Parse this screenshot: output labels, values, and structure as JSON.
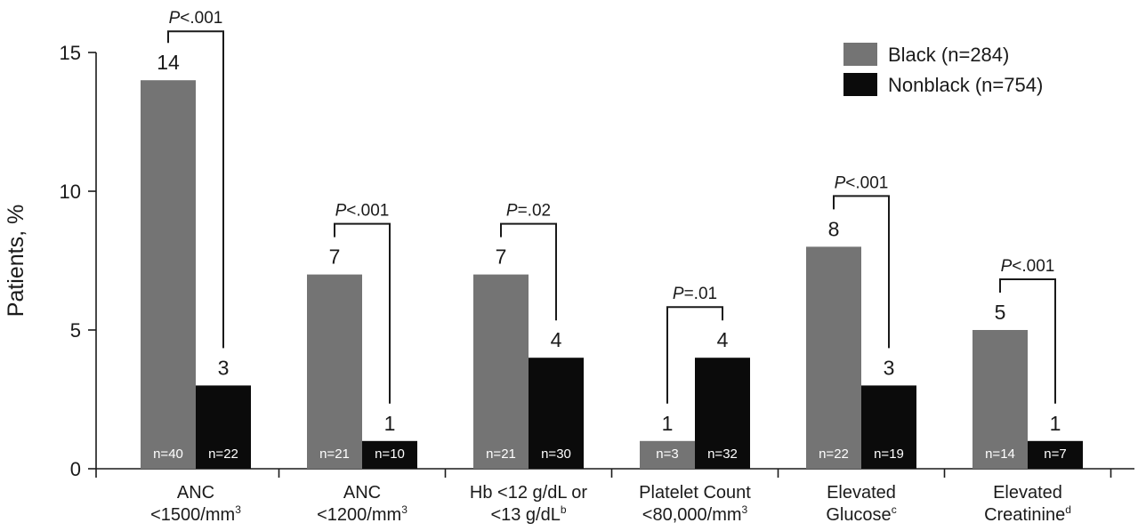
{
  "chart_data": {
    "type": "bar",
    "ylabel": "Patients, %",
    "ylim": [
      0,
      15
    ],
    "yticks": [
      0,
      5,
      10,
      15
    ],
    "grid": false,
    "legend_position": "top-right",
    "categories": [
      {
        "lines": [
          "ANC",
          "<1500/mm"
        ],
        "sup": "3"
      },
      {
        "lines": [
          "ANC",
          "<1200/mm"
        ],
        "sup": "3"
      },
      {
        "lines": [
          "Hb <12 g/dL or",
          "<13 g/dL"
        ],
        "sup": "b"
      },
      {
        "lines": [
          "Platelet Count",
          "<80,000/mm"
        ],
        "sup": "3"
      },
      {
        "lines": [
          "Elevated",
          "Glucose"
        ],
        "sup": "c"
      },
      {
        "lines": [
          "Elevated",
          "Creatinine"
        ],
        "sup": "d"
      }
    ],
    "series": [
      {
        "name": "Black (n=284)",
        "color": "#747474",
        "values": [
          14,
          7,
          7,
          1,
          8,
          5
        ],
        "n_labels": [
          "n=40",
          "n=21",
          "n=21",
          "n=3",
          "n=22",
          "n=14"
        ]
      },
      {
        "name": "Nonblack (n=754)",
        "color": "#0b0b0b",
        "values": [
          3,
          1,
          4,
          4,
          3,
          1
        ],
        "n_labels": [
          "n=22",
          "n=10",
          "n=30",
          "n=32",
          "n=19",
          "n=7"
        ]
      }
    ],
    "p_values": [
      {
        "italic": "P",
        "rest": "<.001"
      },
      {
        "italic": "P",
        "rest": "<.001"
      },
      {
        "italic": "P",
        "rest": "=.02"
      },
      {
        "italic": "P",
        "rest": "=.01"
      },
      {
        "italic": "P",
        "rest": "<.001"
      },
      {
        "italic": "P",
        "rest": "<.001"
      }
    ]
  }
}
